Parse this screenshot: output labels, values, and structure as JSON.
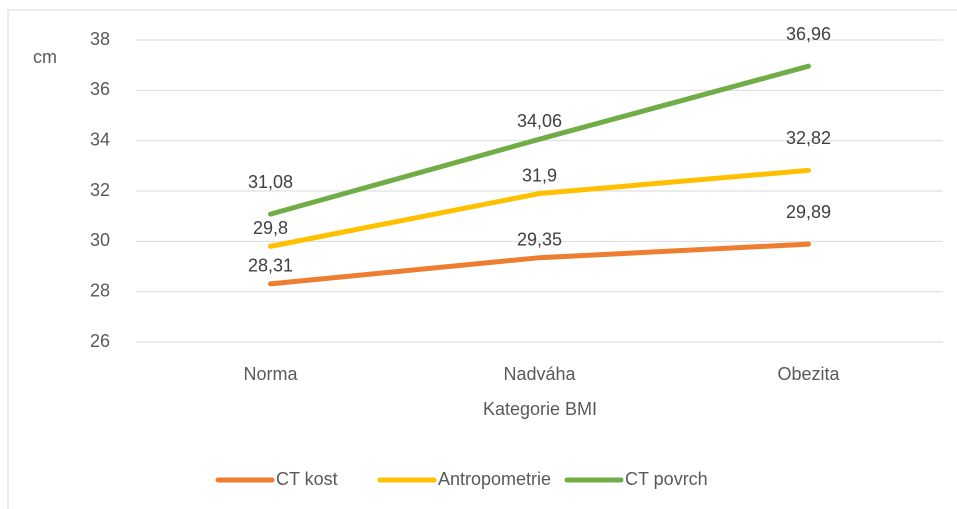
{
  "chart_data": {
    "type": "line",
    "y_label": "cm",
    "x_label": "Kategorie BMI",
    "categories": [
      "Norma",
      "Nadváha",
      "Obezita"
    ],
    "series": [
      {
        "name": "CT kost",
        "color": "#ed7d31",
        "values": [
          28.31,
          29.35,
          29.89
        ],
        "value_labels": [
          "28,31",
          "29,35",
          "29,89"
        ]
      },
      {
        "name": "Antropometrie",
        "color": "#ffc000",
        "values": [
          29.8,
          31.9,
          32.82
        ],
        "value_labels": [
          "29,8",
          "31,9",
          "32,82"
        ]
      },
      {
        "name": "CT povrch",
        "color": "#70ad47",
        "values": [
          31.08,
          34.06,
          36.96
        ],
        "value_labels": [
          "31,08",
          "34,06",
          "36,96"
        ]
      }
    ],
    "ylim": [
      26,
      38
    ],
    "yticks": [
      26,
      28,
      30,
      32,
      34,
      36,
      38
    ],
    "grid": true,
    "legend": "bottom"
  }
}
